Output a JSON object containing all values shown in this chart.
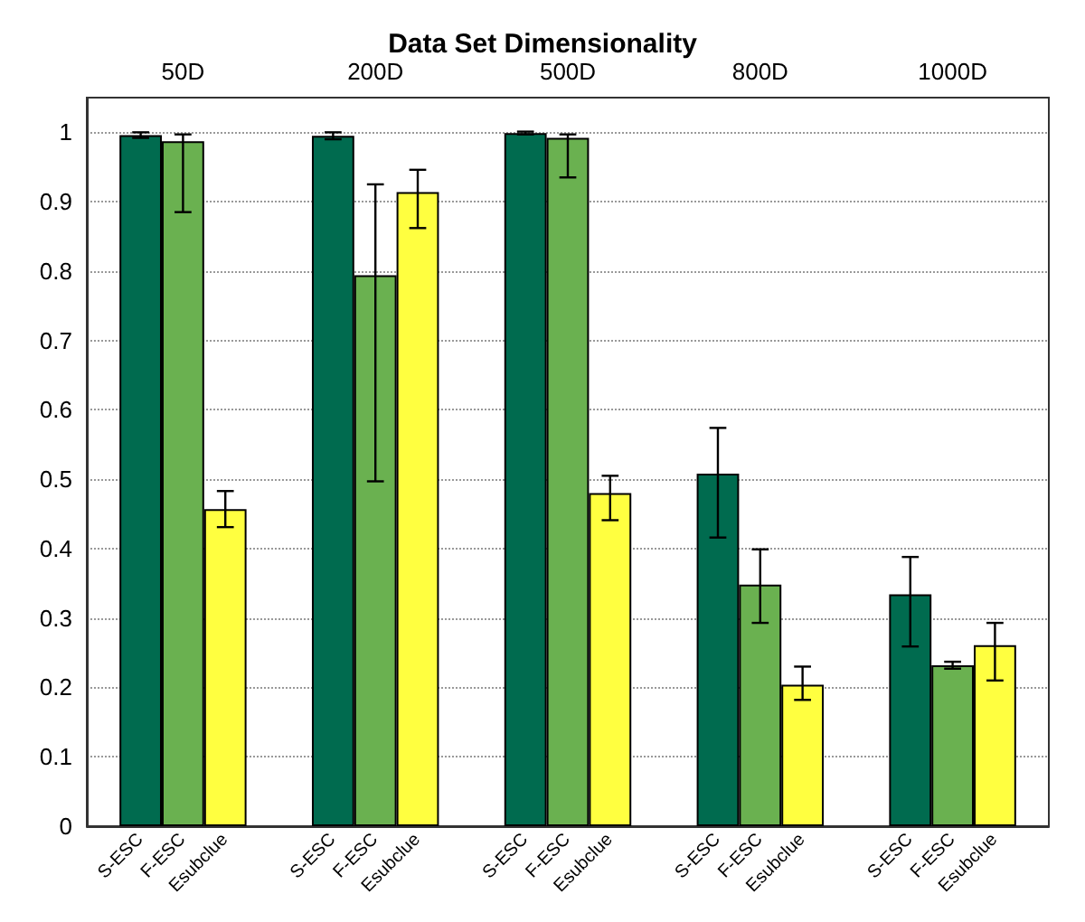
{
  "chart_data": {
    "type": "bar",
    "title": "Data Set Dimensionality",
    "categories": [
      "50D",
      "200D",
      "500D",
      "800D",
      "1000D"
    ],
    "series": [
      {
        "name": "S-ESC",
        "color": "#006b4f",
        "values": [
          0.996,
          0.995,
          0.999,
          0.508,
          0.334
        ],
        "errors": [
          0.004,
          0.005,
          0.002,
          [
            0.416,
            0.574
          ],
          [
            0.259,
            0.388
          ]
        ]
      },
      {
        "name": "F-ESC",
        "color": "#6ab150",
        "values": [
          0.987,
          0.794,
          0.992,
          0.348,
          0.232
        ],
        "errors": [
          [
            0.885,
            0.997
          ],
          [
            0.497,
            0.925
          ],
          [
            0.935,
            0.997
          ],
          [
            0.293,
            0.399
          ],
          [
            0.227,
            0.237
          ]
        ]
      },
      {
        "name": "Esubclue",
        "color": "#ffff40",
        "values": [
          0.457,
          0.914,
          0.48,
          0.204,
          0.261
        ],
        "errors": [
          [
            0.431,
            0.483
          ],
          [
            0.862,
            0.946
          ],
          [
            0.441,
            0.505
          ],
          [
            0.182,
            0.23
          ],
          [
            0.21,
            0.293
          ]
        ]
      }
    ],
    "ylim": [
      0,
      1.05
    ],
    "yticks": [
      0,
      0.1,
      0.2,
      0.3,
      0.4,
      0.5,
      0.6,
      0.7,
      0.8,
      0.9,
      1
    ],
    "grid": "y",
    "legend": false
  }
}
